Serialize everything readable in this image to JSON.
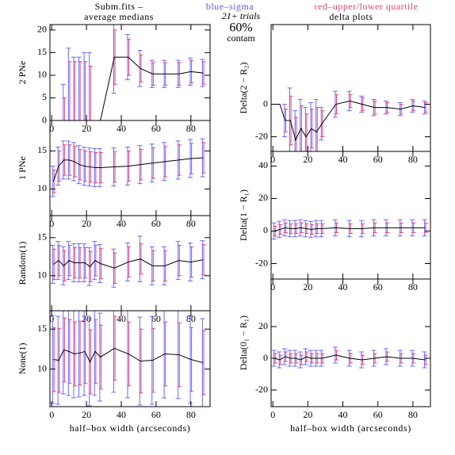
{
  "header": {
    "file": "Subm.fits –",
    "sigma_note": "blue–sigma",
    "quartile_note": "red–upper/lower quartile",
    "left_title": "average medians",
    "right_title": "delta plots",
    "trials": "21+ trials",
    "percent": "60%",
    "contam": "contam"
  },
  "chart_data": [
    {
      "type": "errorline",
      "ylabel": "2 PNe",
      "color": "#000000",
      "error_color": "#6a6aff",
      "quartile_color": "#e8407a",
      "x": [
        1,
        4,
        7,
        10,
        13,
        16,
        19,
        22,
        25,
        28,
        36,
        44,
        51,
        58,
        65,
        73,
        80,
        87
      ],
      "values": [
        0,
        0,
        0,
        0,
        0,
        0,
        0,
        0,
        0,
        0,
        14,
        14,
        11.5,
        10.3,
        10.3,
        10.3,
        10.8,
        10.5
      ],
      "errors": [
        0,
        0,
        8,
        16,
        14,
        14,
        15,
        15,
        0,
        0,
        8,
        5,
        4,
        3,
        3,
        3,
        3,
        3
      ],
      "quartile_errors": [
        0,
        0,
        5,
        13,
        13,
        13,
        13,
        12,
        0,
        0,
        6,
        4,
        3,
        2.5,
        2.5,
        2.5,
        2.5,
        2.5
      ],
      "xlim": [
        -1,
        91
      ],
      "ylim": [
        0,
        21.2
      ],
      "xticks": [
        0,
        20,
        40,
        60,
        80
      ],
      "yticks": [
        0,
        5,
        10,
        15,
        20
      ]
    },
    {
      "type": "errorline",
      "ylabel": "1 PNe",
      "color": "#000000",
      "error_color": "#6a6aff",
      "quartile_color": "#e8407a",
      "x": [
        1,
        4,
        7,
        10,
        13,
        16,
        19,
        22,
        25,
        28,
        36,
        44,
        51,
        58,
        65,
        73,
        80,
        87
      ],
      "values": [
        11,
        13,
        13.8,
        13.8,
        13.6,
        13.2,
        13,
        12.9,
        12.8,
        12.8,
        12.9,
        13,
        13.2,
        13.4,
        13.6,
        13.8,
        14,
        14.1
      ],
      "errors": [
        2,
        2.5,
        2.5,
        2.5,
        2.5,
        2.5,
        2.5,
        2.5,
        2.5,
        2.5,
        2.5,
        2.5,
        2.5,
        2.5,
        2.5,
        2.5,
        2.5,
        2.5
      ],
      "quartile_errors": [
        1.5,
        2,
        2,
        2,
        2,
        2,
        2,
        2,
        2,
        2,
        2,
        2,
        2,
        2,
        2,
        2,
        2,
        2
      ],
      "xlim": [
        -1,
        91
      ],
      "ylim": [
        6.5,
        19
      ],
      "xticks": [
        0,
        20,
        40,
        60,
        80
      ],
      "yticks": [
        10,
        15
      ]
    },
    {
      "type": "errorline",
      "ylabel": "Random(1)",
      "color": "#000000",
      "error_color": "#6a6aff",
      "quartile_color": "#e8407a",
      "x": [
        1,
        4,
        7,
        10,
        13,
        16,
        19,
        22,
        25,
        28,
        36,
        44,
        51,
        58,
        65,
        73,
        80,
        87
      ],
      "values": [
        11.5,
        12,
        11.3,
        12,
        11.7,
        11.7,
        11.7,
        11.2,
        12,
        11.6,
        11,
        11.8,
        12.2,
        11.3,
        11.3,
        12,
        11.8,
        12.1
      ],
      "errors": [
        2.5,
        2.5,
        2.5,
        2.5,
        2.5,
        2.5,
        2.5,
        2.5,
        2.5,
        2.5,
        2.5,
        2.5,
        3,
        2.5,
        2.5,
        2.5,
        2.5,
        2.5
      ],
      "quartile_errors": [
        2,
        2,
        2,
        2,
        2,
        2,
        2,
        2,
        2,
        2,
        2,
        2,
        2,
        2,
        2,
        2,
        2,
        2
      ],
      "xlim": [
        -1,
        91
      ],
      "ylim": [
        5.4,
        17.9
      ],
      "xticks": [
        0,
        20,
        40,
        60,
        80
      ],
      "yticks": [
        10,
        15
      ]
    },
    {
      "type": "errorline",
      "ylabel": "None(1)",
      "xlabel": "half–box width (arcseconds)",
      "color": "#000000",
      "error_color": "#6a6aff",
      "quartile_color": "#e8407a",
      "x": [
        1,
        4,
        7,
        10,
        13,
        16,
        19,
        22,
        25,
        28,
        36,
        44,
        51,
        58,
        65,
        73,
        80,
        87
      ],
      "values": [
        11.2,
        11.1,
        12.4,
        12.2,
        11.9,
        12,
        12.2,
        10.9,
        12.2,
        11.5,
        12.6,
        11.9,
        11,
        11.1,
        11.9,
        11.8,
        11.2,
        10.8
      ],
      "errors": [
        5.5,
        5.5,
        5.5,
        5.5,
        5.5,
        5.5,
        5.5,
        5.5,
        5.5,
        5.5,
        5.5,
        5.5,
        5.5,
        5.5,
        5.5,
        5.5,
        5.5,
        5.5
      ],
      "quartile_errors": [
        4,
        4,
        4,
        4,
        4,
        4,
        4,
        4,
        4,
        4,
        4,
        4,
        4,
        4,
        4,
        4,
        4,
        4
      ],
      "xlim": [
        -1,
        91
      ],
      "ylim": [
        5.3,
        17.3
      ],
      "xticks": [
        0,
        20,
        40,
        60,
        80
      ],
      "yticks": [
        10,
        15
      ]
    },
    {
      "type": "errorline",
      "ylabel": "Delta(2 − R₂)",
      "color": "#000000",
      "error_color": "#6a6aff",
      "quartile_color": "#e8407a",
      "x": [
        1,
        4,
        7,
        10,
        13,
        16,
        19,
        22,
        25,
        28,
        36,
        44,
        51,
        58,
        65,
        73,
        80,
        87
      ],
      "values": [
        0,
        0,
        -10,
        -10,
        -22,
        -15,
        -20,
        -15,
        -17,
        -12,
        0,
        2,
        0,
        -2,
        -2,
        -3,
        -1,
        -2
      ],
      "errors": [
        0,
        0,
        10,
        20,
        18,
        18,
        18,
        16,
        20,
        10,
        8,
        6,
        5,
        5,
        4,
        4,
        4,
        4
      ],
      "quartile_errors": [
        0,
        0,
        7,
        15,
        14,
        14,
        14,
        12,
        15,
        8,
        6,
        4,
        4,
        4,
        3,
        3,
        3,
        3
      ],
      "xlim": [
        -1,
        90
      ],
      "ylim": [
        -29,
        49
      ],
      "xticks": [
        0,
        20,
        40,
        60,
        80
      ],
      "yticks": [
        -20,
        0
      ]
    },
    {
      "type": "errorline",
      "ylabel": "Delta(1 − R₁)",
      "color": "#000000",
      "error_color": "#6a6aff",
      "quartile_color": "#e8407a",
      "x": [
        1,
        4,
        7,
        10,
        13,
        16,
        19,
        22,
        25,
        28,
        36,
        44,
        51,
        58,
        65,
        73,
        80,
        87
      ],
      "values": [
        0,
        1,
        2,
        1.5,
        1.5,
        2,
        1.5,
        1,
        1.5,
        1.5,
        2,
        1.5,
        1.5,
        2,
        2,
        2,
        2,
        2
      ],
      "errors": [
        5,
        5,
        5,
        5,
        5,
        5,
        5,
        5,
        5,
        5,
        5,
        5,
        5,
        5,
        5,
        5,
        5,
        5
      ],
      "quartile_errors": [
        3,
        3,
        3,
        3,
        3,
        3,
        3,
        3,
        3,
        3,
        3,
        3,
        3,
        3,
        3,
        3,
        3,
        3
      ],
      "xlim": [
        -1,
        90
      ],
      "ylim": [
        -29.5,
        49
      ],
      "xticks": [
        0,
        20,
        40,
        60,
        80
      ],
      "yticks": [
        -20,
        0,
        20,
        40
      ]
    },
    {
      "type": "errorline",
      "ylabel": "Delta(0₁ − R₁)",
      "xlabel": "half–box width (arcseconds)",
      "color": "#000000",
      "error_color": "#6a6aff",
      "quartile_color": "#e8407a",
      "x": [
        1,
        4,
        7,
        10,
        13,
        16,
        19,
        22,
        25,
        28,
        36,
        44,
        51,
        58,
        65,
        73,
        80,
        87
      ],
      "values": [
        0,
        -1,
        1,
        0,
        0,
        -1,
        1,
        0,
        0,
        0,
        2,
        0,
        -1,
        0,
        1,
        0,
        0,
        -1
      ],
      "errors": [
        5,
        5,
        5,
        5,
        5,
        5,
        5,
        5,
        5,
        5,
        5,
        5,
        5,
        5,
        5,
        5,
        5,
        5
      ],
      "quartile_errors": [
        3,
        3,
        3,
        3,
        3,
        3,
        3,
        3,
        3,
        3,
        3,
        3,
        3,
        3,
        3,
        3,
        3,
        3
      ],
      "xlim": [
        -1,
        90
      ],
      "ylim": [
        -30.5,
        50
      ],
      "xticks": [
        0,
        20,
        40,
        60,
        80
      ],
      "yticks": [
        -20,
        0,
        20
      ]
    }
  ]
}
